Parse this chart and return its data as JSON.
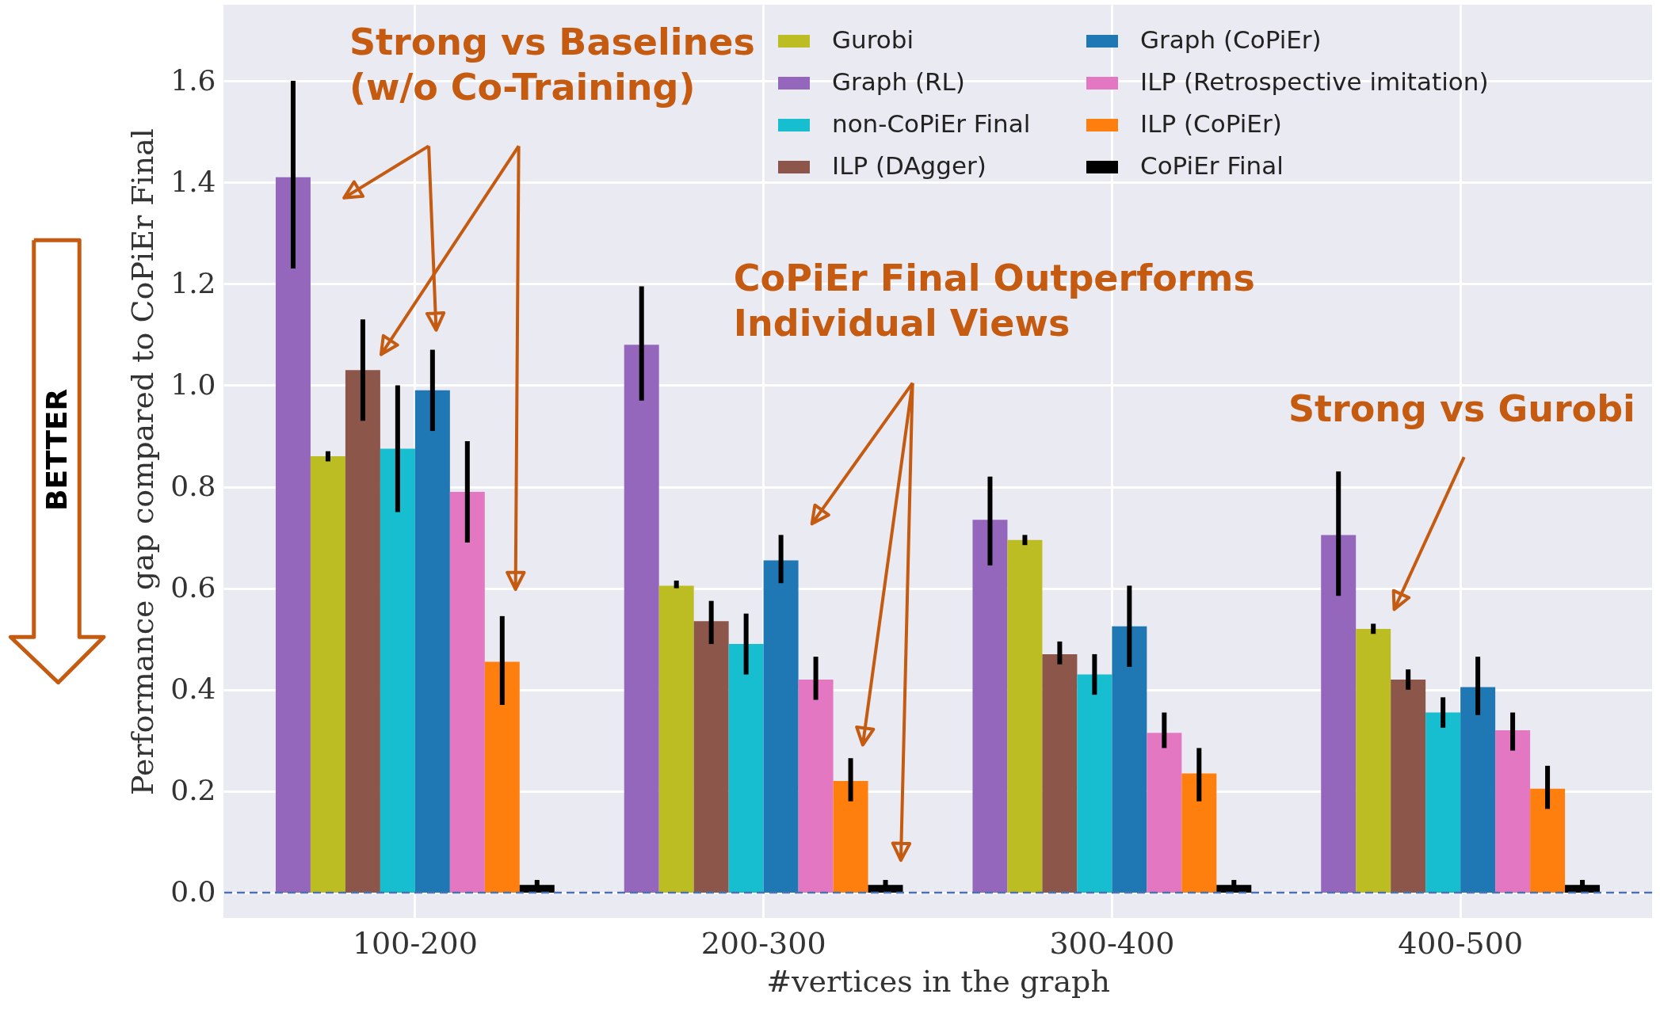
{
  "chart_data": {
    "type": "bar",
    "xlabel": "#vertices in the graph",
    "ylabel": "Performance gap compared to CoPiEr Final",
    "categories": [
      "100-200",
      "200-300",
      "300-400",
      "400-500"
    ],
    "series": [
      {
        "name": "Graph (RL)",
        "color": "#9467bd",
        "values": [
          1.41,
          1.08,
          0.735,
          0.705
        ],
        "errors": [
          [
            1.23,
            1.6
          ],
          [
            0.97,
            1.195
          ],
          [
            0.645,
            0.82
          ],
          [
            0.585,
            0.83
          ]
        ]
      },
      {
        "name": "Gurobi",
        "color": "#bcbd22",
        "values": [
          0.86,
          0.605,
          0.695,
          0.52
        ],
        "errors": [
          [
            0.85,
            0.87
          ],
          [
            0.6,
            0.615
          ],
          [
            0.685,
            0.705
          ],
          [
            0.51,
            0.53
          ]
        ]
      },
      {
        "name": "ILP (DAgger)",
        "color": "#8c564b",
        "values": [
          1.03,
          0.535,
          0.47,
          0.42
        ],
        "errors": [
          [
            0.93,
            1.13
          ],
          [
            0.49,
            0.575
          ],
          [
            0.45,
            0.495
          ],
          [
            0.4,
            0.44
          ]
        ]
      },
      {
        "name": "non-CoPiEr Final",
        "color": "#17becf",
        "values": [
          0.875,
          0.49,
          0.43,
          0.355
        ],
        "errors": [
          [
            0.75,
            1.0
          ],
          [
            0.43,
            0.55
          ],
          [
            0.39,
            0.47
          ],
          [
            0.325,
            0.385
          ]
        ]
      },
      {
        "name": "Graph (CoPiEr)",
        "color": "#1f77b4",
        "values": [
          0.99,
          0.655,
          0.525,
          0.405
        ],
        "errors": [
          [
            0.91,
            1.07
          ],
          [
            0.61,
            0.705
          ],
          [
            0.445,
            0.605
          ],
          [
            0.35,
            0.465
          ]
        ]
      },
      {
        "name": "ILP (Retrospective imitation)",
        "color": "#e377c2",
        "values": [
          0.79,
          0.42,
          0.315,
          0.32
        ],
        "errors": [
          [
            0.69,
            0.89
          ],
          [
            0.38,
            0.465
          ],
          [
            0.285,
            0.355
          ],
          [
            0.28,
            0.355
          ]
        ]
      },
      {
        "name": "ILP (CoPiEr)",
        "color": "#ff7f0e",
        "values": [
          0.455,
          0.22,
          0.235,
          0.205
        ],
        "errors": [
          [
            0.37,
            0.545
          ],
          [
            0.18,
            0.265
          ],
          [
            0.18,
            0.285
          ],
          [
            0.165,
            0.25
          ]
        ]
      },
      {
        "name": "CoPiEr Final",
        "color": "#000000",
        "values": [
          0.015,
          0.015,
          0.015,
          0.015
        ],
        "errors": [
          [
            0.005,
            0.025
          ],
          [
            0.005,
            0.025
          ],
          [
            0.005,
            0.025
          ],
          [
            0.005,
            0.025
          ]
        ]
      }
    ],
    "ylim": [
      -0.05,
      1.75
    ],
    "yticks": [
      {
        "value": 0,
        "label": "0.0"
      },
      0.2,
      0.4,
      0.6,
      0.8,
      {
        "value": 1,
        "label": "1.0"
      },
      1.2,
      1.4,
      1.6
    ],
    "grid": true,
    "legend": "top right",
    "ref_lines": [
      {
        "axis": "y",
        "value": 0,
        "color": "#4c72b0",
        "line_style": "dashed"
      }
    ],
    "annotations": [
      "Strong vs Baselines\n(w/o Co-Training)",
      "CoPiEr Final Outperforms\nIndividual Views",
      "Strong vs Gurobi",
      "BETTER"
    ]
  }
}
